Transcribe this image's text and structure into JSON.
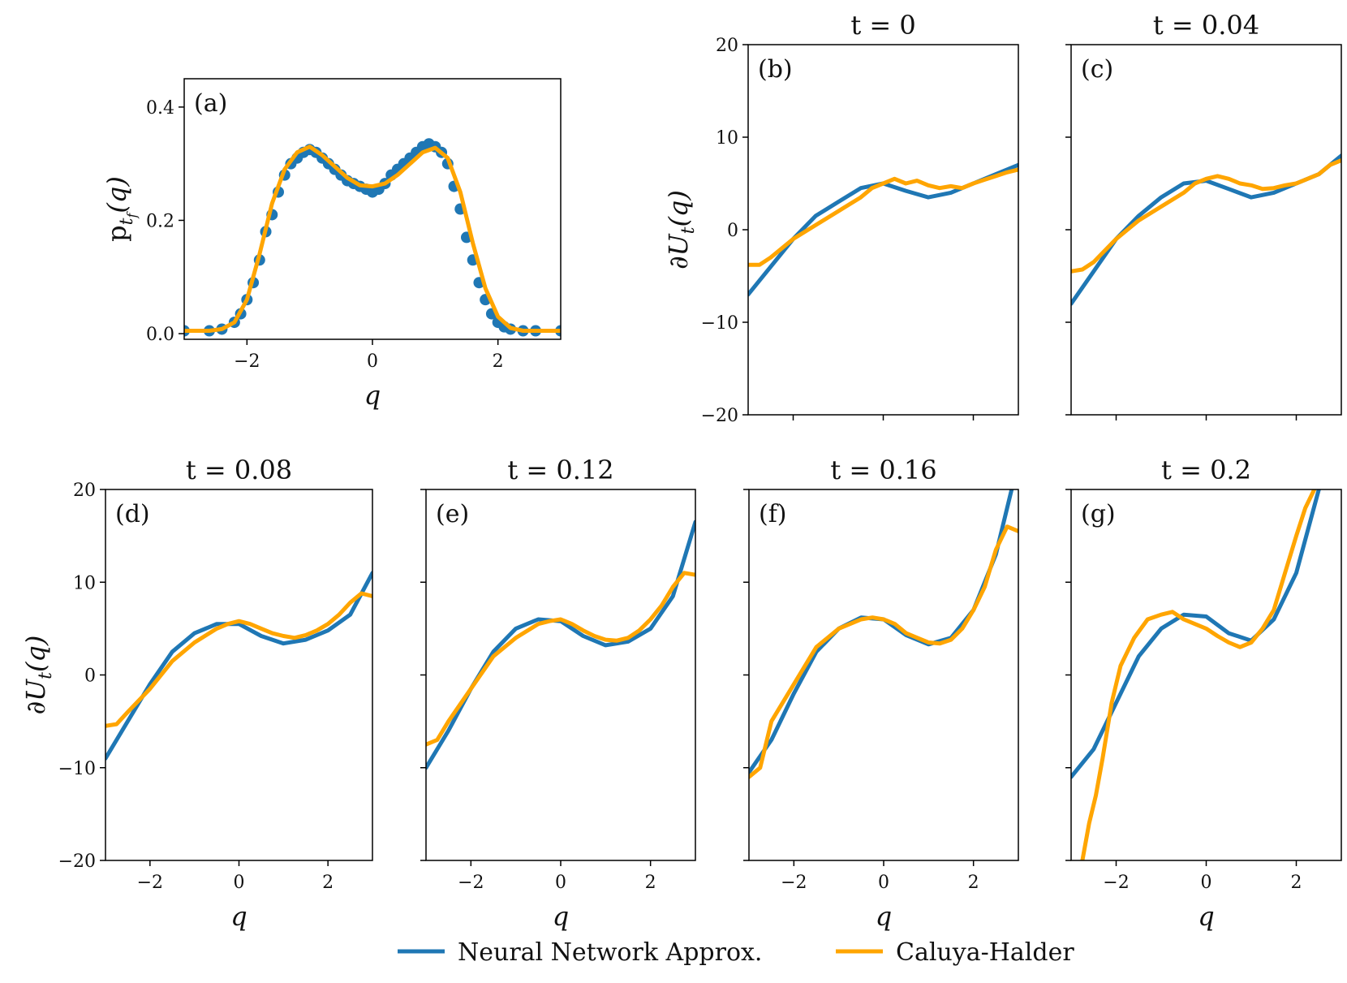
{
  "colors": {
    "nn": "#1f77b4",
    "ch": "#ffa500"
  },
  "legend": {
    "nn": "Neural Network Approx.",
    "ch": "Caluya-Halder"
  },
  "chart_data": [
    {
      "id": "a",
      "type": "scatter+line",
      "panel_label": "(a)",
      "title": "",
      "xlabel": "q",
      "ylabel": "p",
      "ylabel_sub": "t",
      "ylabel_subsub": "f",
      "ylabel_tail": "(q)",
      "xlim": [
        -3,
        3
      ],
      "ylim": [
        -0.01,
        0.45
      ],
      "xticks": [
        -2,
        0,
        2
      ],
      "xticklabels": [
        "−2",
        "0",
        "2"
      ],
      "yticks": [
        0.0,
        0.2,
        0.4
      ],
      "yticklabels": [
        "0.0",
        "0.2",
        "0.4"
      ],
      "series": [
        {
          "name": "Neural Network Approx.",
          "kind": "scatter",
          "x": [
            -3.0,
            -2.6,
            -2.4,
            -2.2,
            -2.1,
            -2.0,
            -1.9,
            -1.8,
            -1.7,
            -1.6,
            -1.5,
            -1.4,
            -1.3,
            -1.2,
            -1.1,
            -1.0,
            -0.9,
            -0.8,
            -0.7,
            -0.6,
            -0.5,
            -0.4,
            -0.3,
            -0.2,
            -0.1,
            0.0,
            0.1,
            0.2,
            0.3,
            0.4,
            0.5,
            0.6,
            0.7,
            0.8,
            0.9,
            1.0,
            1.1,
            1.2,
            1.3,
            1.4,
            1.5,
            1.6,
            1.7,
            1.8,
            1.9,
            2.0,
            2.1,
            2.2,
            2.4,
            2.6,
            3.0
          ],
          "y": [
            0.005,
            0.005,
            0.008,
            0.02,
            0.035,
            0.06,
            0.09,
            0.13,
            0.18,
            0.21,
            0.25,
            0.28,
            0.3,
            0.31,
            0.32,
            0.325,
            0.32,
            0.31,
            0.3,
            0.29,
            0.28,
            0.27,
            0.265,
            0.26,
            0.255,
            0.25,
            0.255,
            0.265,
            0.28,
            0.29,
            0.3,
            0.31,
            0.32,
            0.33,
            0.335,
            0.33,
            0.32,
            0.3,
            0.26,
            0.22,
            0.17,
            0.13,
            0.09,
            0.06,
            0.035,
            0.02,
            0.012,
            0.008,
            0.005,
            0.005,
            0.005
          ]
        },
        {
          "name": "Caluya-Halder",
          "kind": "line",
          "x": [
            -3.0,
            -2.6,
            -2.4,
            -2.2,
            -2.0,
            -1.8,
            -1.6,
            -1.4,
            -1.2,
            -1.0,
            -0.8,
            -0.6,
            -0.4,
            -0.2,
            0.0,
            0.2,
            0.4,
            0.6,
            0.8,
            1.0,
            1.2,
            1.4,
            1.6,
            1.8,
            2.0,
            2.2,
            2.4,
            2.6,
            3.0
          ],
          "y": [
            0.005,
            0.005,
            0.008,
            0.02,
            0.06,
            0.14,
            0.23,
            0.29,
            0.32,
            0.33,
            0.315,
            0.295,
            0.275,
            0.262,
            0.26,
            0.265,
            0.28,
            0.3,
            0.32,
            0.328,
            0.31,
            0.25,
            0.16,
            0.08,
            0.03,
            0.01,
            0.005,
            0.005,
            0.005
          ]
        }
      ]
    },
    {
      "id": "b",
      "type": "line",
      "panel_label": "(b)",
      "title": "t = 0",
      "xlabel": "",
      "ylabel": "∂U",
      "ylabel_sub": "t",
      "ylabel_tail": "(q)",
      "xlim": [
        -3,
        3
      ],
      "ylim": [
        -20,
        20
      ],
      "xticks": [
        -2,
        0,
        2
      ],
      "xticklabels": [],
      "yticks": [
        -20,
        -10,
        0,
        10,
        20
      ],
      "yticklabels": [
        "−20",
        "−10",
        "0",
        "10",
        "20"
      ],
      "series": [
        {
          "name": "Neural Network Approx.",
          "x": [
            -3,
            -2.5,
            -2,
            -1.5,
            -1,
            -0.5,
            0,
            0.5,
            1,
            1.5,
            2,
            2.5,
            3
          ],
          "y": [
            -7,
            -4,
            -1,
            1.5,
            3,
            4.5,
            5,
            4.2,
            3.5,
            4,
            5,
            6,
            7
          ]
        },
        {
          "name": "Caluya-Halder",
          "x": [
            -3,
            -2.75,
            -2.5,
            -2,
            -1.5,
            -1,
            -0.5,
            -0.25,
            0,
            0.25,
            0.5,
            0.75,
            1,
            1.25,
            1.5,
            1.75,
            2,
            2.25,
            2.5,
            2.75,
            3
          ],
          "y": [
            -3.8,
            -3.8,
            -3,
            -1,
            0.5,
            2,
            3.5,
            4.5,
            5,
            5.5,
            5,
            5.3,
            4.8,
            4.5,
            4.7,
            4.5,
            5,
            5.4,
            5.8,
            6.2,
            6.5
          ]
        }
      ]
    },
    {
      "id": "c",
      "type": "line",
      "panel_label": "(c)",
      "title": "t = 0.04",
      "xlabel": "",
      "ylabel": "",
      "xlim": [
        -3,
        3
      ],
      "ylim": [
        -20,
        20
      ],
      "xticks": [
        -2,
        0,
        2
      ],
      "xticklabels": [],
      "yticks": [
        -20,
        -10,
        0,
        10,
        20
      ],
      "yticklabels": [],
      "series": [
        {
          "name": "Neural Network Approx.",
          "x": [
            -3,
            -2.5,
            -2,
            -1.5,
            -1,
            -0.5,
            0,
            0.5,
            1,
            1.5,
            2,
            2.5,
            3
          ],
          "y": [
            -8,
            -4.5,
            -1,
            1.5,
            3.5,
            5,
            5.3,
            4.4,
            3.5,
            4,
            5,
            6,
            8
          ]
        },
        {
          "name": "Caluya-Halder",
          "x": [
            -3,
            -2.75,
            -2.5,
            -2,
            -1.5,
            -1,
            -0.5,
            -0.25,
            0,
            0.25,
            0.5,
            0.75,
            1,
            1.25,
            1.5,
            1.75,
            2,
            2.25,
            2.5,
            2.75,
            3
          ],
          "y": [
            -4.5,
            -4.3,
            -3.5,
            -1,
            1,
            2.5,
            4,
            5,
            5.5,
            5.8,
            5.5,
            5,
            4.8,
            4.4,
            4.5,
            4.8,
            5,
            5.5,
            6,
            7,
            7.5
          ]
        }
      ]
    },
    {
      "id": "d",
      "type": "line",
      "panel_label": "(d)",
      "title": "t = 0.08",
      "xlabel": "q",
      "ylabel": "∂U",
      "ylabel_sub": "t",
      "ylabel_tail": "(q)",
      "xlim": [
        -3,
        3
      ],
      "ylim": [
        -20,
        20
      ],
      "xticks": [
        -2,
        0,
        2
      ],
      "xticklabels": [
        "−2",
        "0",
        "2"
      ],
      "yticks": [
        -20,
        -10,
        0,
        10,
        20
      ],
      "yticklabels": [
        "−20",
        "−10",
        "0",
        "10",
        "20"
      ],
      "series": [
        {
          "name": "Neural Network Approx.",
          "x": [
            -3,
            -2.5,
            -2,
            -1.5,
            -1,
            -0.5,
            0,
            0.5,
            1,
            1.5,
            2,
            2.5,
            3
          ],
          "y": [
            -9,
            -5,
            -1,
            2.5,
            4.5,
            5.5,
            5.5,
            4.2,
            3.4,
            3.8,
            4.8,
            6.5,
            11
          ]
        },
        {
          "name": "Caluya-Halder",
          "x": [
            -3,
            -2.75,
            -2.5,
            -2,
            -1.5,
            -1,
            -0.5,
            -0.25,
            0,
            0.25,
            0.5,
            0.75,
            1,
            1.25,
            1.5,
            1.75,
            2,
            2.25,
            2.5,
            2.75,
            3
          ],
          "y": [
            -5.5,
            -5.3,
            -4,
            -1.5,
            1.5,
            3.5,
            5,
            5.5,
            5.8,
            5.5,
            5,
            4.5,
            4.2,
            4,
            4.3,
            4.8,
            5.5,
            6.5,
            7.8,
            8.8,
            8.5
          ]
        }
      ]
    },
    {
      "id": "e",
      "type": "line",
      "panel_label": "(e)",
      "title": "t = 0.12",
      "xlabel": "q",
      "ylabel": "",
      "xlim": [
        -3,
        3
      ],
      "ylim": [
        -20,
        20
      ],
      "xticks": [
        -2,
        0,
        2
      ],
      "xticklabels": [
        "−2",
        "0",
        "2"
      ],
      "yticks": [
        -20,
        -10,
        0,
        10,
        20
      ],
      "yticklabels": [],
      "series": [
        {
          "name": "Neural Network Approx.",
          "x": [
            -3,
            -2.5,
            -2,
            -1.5,
            -1,
            -0.5,
            0,
            0.5,
            1,
            1.5,
            2,
            2.5,
            3
          ],
          "y": [
            -10,
            -6,
            -1.5,
            2.5,
            5,
            6,
            5.8,
            4.2,
            3.2,
            3.6,
            5,
            8.5,
            16.5
          ]
        },
        {
          "name": "Caluya-Halder",
          "x": [
            -3,
            -2.75,
            -2.5,
            -2,
            -1.5,
            -1,
            -0.5,
            -0.25,
            0,
            0.25,
            0.5,
            0.75,
            1,
            1.25,
            1.5,
            1.75,
            2,
            2.25,
            2.5,
            2.75,
            3
          ],
          "y": [
            -7.5,
            -7,
            -5,
            -1.5,
            2,
            4,
            5.5,
            5.8,
            6,
            5.5,
            4.8,
            4.2,
            3.8,
            3.7,
            4,
            4.8,
            6,
            7.5,
            9.5,
            11,
            10.8
          ]
        }
      ]
    },
    {
      "id": "f",
      "type": "line",
      "panel_label": "(f)",
      "title": "t = 0.16",
      "xlabel": "q",
      "ylabel": "",
      "xlim": [
        -3,
        3
      ],
      "ylim": [
        -20,
        20
      ],
      "xticks": [
        -2,
        0,
        2
      ],
      "xticklabels": [
        "−2",
        "0",
        "2"
      ],
      "yticks": [
        -20,
        -10,
        0,
        10,
        20
      ],
      "yticklabels": [],
      "series": [
        {
          "name": "Neural Network Approx.",
          "x": [
            -3,
            -2.5,
            -2,
            -1.5,
            -1,
            -0.5,
            0,
            0.5,
            1,
            1.5,
            2,
            2.5,
            2.85
          ],
          "y": [
            -10.5,
            -7,
            -2,
            2.5,
            5,
            6.2,
            6,
            4.3,
            3.3,
            4,
            7,
            13,
            20
          ]
        },
        {
          "name": "Caluya-Halder",
          "x": [
            -3,
            -2.75,
            -2.5,
            -2,
            -1.5,
            -1,
            -0.5,
            -0.25,
            0,
            0.25,
            0.5,
            0.75,
            1,
            1.25,
            1.5,
            1.75,
            2,
            2.25,
            2.5,
            2.75,
            3
          ],
          "y": [
            -11,
            -10,
            -5,
            -1,
            3,
            5,
            6,
            6.2,
            6,
            5.5,
            4.5,
            4,
            3.5,
            3.4,
            3.8,
            5,
            7,
            9.5,
            13.5,
            16,
            15.5
          ]
        }
      ]
    },
    {
      "id": "g",
      "type": "line",
      "panel_label": "(g)",
      "title": "t = 0.2",
      "xlabel": "q",
      "ylabel": "",
      "xlim": [
        -3,
        3
      ],
      "ylim": [
        -20,
        20
      ],
      "xticks": [
        -2,
        0,
        2
      ],
      "xticklabels": [
        "−2",
        "0",
        "2"
      ],
      "yticks": [
        -20,
        -10,
        0,
        10,
        20
      ],
      "yticklabels": [],
      "series": [
        {
          "name": "Neural Network Approx.",
          "x": [
            -3,
            -2.5,
            -2,
            -1.5,
            -1,
            -0.5,
            0,
            0.5,
            1,
            1.5,
            2,
            2.5
          ],
          "y": [
            -11,
            -8,
            -3,
            2,
            5,
            6.5,
            6.3,
            4.5,
            3.7,
            6,
            11,
            20
          ]
        },
        {
          "name": "Caluya-Halder",
          "x": [
            -2.75,
            -2.6,
            -2.45,
            -2.3,
            -2.1,
            -1.9,
            -1.6,
            -1.3,
            -1,
            -0.75,
            -0.5,
            -0.25,
            0,
            0.25,
            0.5,
            0.75,
            1,
            1.25,
            1.5,
            1.75,
            2,
            2.2,
            2.4
          ],
          "y": [
            -20,
            -16,
            -13,
            -9,
            -3,
            1,
            4,
            6,
            6.5,
            6.8,
            6,
            5.5,
            5,
            4.2,
            3.5,
            3,
            3.5,
            5,
            7,
            11,
            15,
            18,
            20
          ]
        }
      ]
    }
  ]
}
